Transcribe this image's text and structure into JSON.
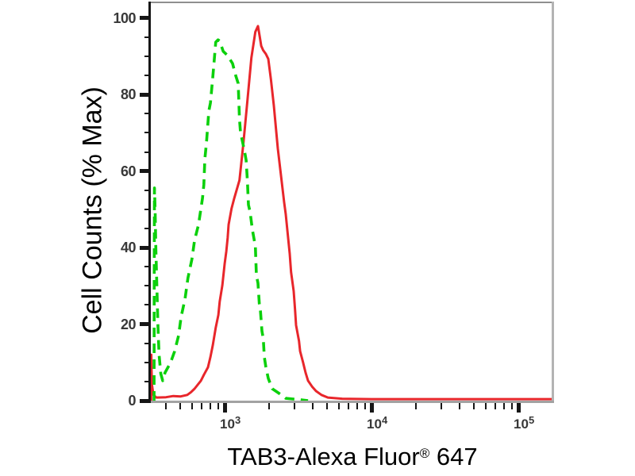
{
  "figure": {
    "ylabel": "Cell Counts (% Max)",
    "xlabel_main": "TAB3-Alexa Fluor",
    "xlabel_reg": "®",
    "xlabel_suffix": " 647"
  },
  "chart_data": {
    "type": "line",
    "subtype": "flow-cytometry-histogram-overlay",
    "title": "",
    "xlabel": "TAB3-Alexa Fluor® 647",
    "ylabel": "Cell Counts (% Max)",
    "grid": false,
    "legend": "none",
    "x_scale": "log10",
    "x_axis": {
      "min_log10": 2.497,
      "max_log10": 5.243,
      "major_ticks": [
        1000,
        10000,
        100000
      ],
      "major_tick_labels": [
        "10^3",
        "10^4",
        "10^5"
      ],
      "minor_tick_multiples": [
        2,
        3,
        4,
        5,
        6,
        7,
        8,
        9
      ]
    },
    "y_axis": {
      "min": 0,
      "max": 100,
      "max_display": 104.3,
      "major_ticks": [
        0,
        20,
        40,
        60,
        80,
        100
      ],
      "major_tick_labels": [
        "0",
        "20",
        "40",
        "60",
        "80",
        "100"
      ],
      "minor_tick_step": 5
    },
    "series": [
      {
        "name": "red-solid-curve",
        "color": "#e8262b",
        "line_style": "solid",
        "stroke_width": 3,
        "points_log10x_pctmax": [
          [
            2.499,
            0
          ],
          [
            2.5,
            12.0
          ],
          [
            2.502,
            8.0
          ],
          [
            2.505,
            4.0
          ],
          [
            2.515,
            1.5
          ],
          [
            2.535,
            0.8
          ],
          [
            2.6,
            0.9
          ],
          [
            2.65,
            1.2
          ],
          [
            2.7,
            1.1
          ],
          [
            2.745,
            1.5
          ],
          [
            2.77,
            2.2
          ],
          [
            2.795,
            3.1
          ],
          [
            2.838,
            5.2
          ],
          [
            2.859,
            6.8
          ],
          [
            2.886,
            8.7
          ],
          [
            2.903,
            11.4
          ],
          [
            2.919,
            14.5
          ],
          [
            2.939,
            19.1
          ],
          [
            2.957,
            22.4
          ],
          [
            2.966,
            25.9
          ],
          [
            2.984,
            30.1
          ],
          [
            3.0,
            35.9
          ],
          [
            3.011,
            39.0
          ],
          [
            3.02,
            42.5
          ],
          [
            3.027,
            46.0
          ],
          [
            3.047,
            50.2
          ],
          [
            3.065,
            52.9
          ],
          [
            3.101,
            57.6
          ],
          [
            3.128,
            67.4
          ],
          [
            3.155,
            78.4
          ],
          [
            3.182,
            89.6
          ],
          [
            3.209,
            96.4
          ],
          [
            3.227,
            97.9
          ],
          [
            3.238,
            95.3
          ],
          [
            3.249,
            92.7
          ],
          [
            3.262,
            91.6
          ],
          [
            3.281,
            90.6
          ],
          [
            3.297,
            89.3
          ],
          [
            3.315,
            84.0
          ],
          [
            3.335,
            77.1
          ],
          [
            3.362,
            65.9
          ],
          [
            3.405,
            51.8
          ],
          [
            3.416,
            48.7
          ],
          [
            3.432,
            42.5
          ],
          [
            3.443,
            38.4
          ],
          [
            3.452,
            33.6
          ],
          [
            3.47,
            28.6
          ],
          [
            3.479,
            23.8
          ],
          [
            3.486,
            19.7
          ],
          [
            3.506,
            15.6
          ],
          [
            3.514,
            12.9
          ],
          [
            3.534,
            10.0
          ],
          [
            3.551,
            7.3
          ],
          [
            3.568,
            5.2
          ],
          [
            3.595,
            3.7
          ],
          [
            3.622,
            2.5
          ],
          [
            3.659,
            1.5
          ],
          [
            3.703,
            0.8
          ],
          [
            3.8,
            0.5
          ],
          [
            4.0,
            0.4
          ],
          [
            4.5,
            0.4
          ],
          [
            5.0,
            0.4
          ],
          [
            5.243,
            0.4
          ]
        ]
      },
      {
        "name": "green-dashed-curve",
        "color": "#0bd00b",
        "line_style": "dashed",
        "stroke_width": 3.6,
        "dash_pattern": [
          12,
          8
        ],
        "points_log10x_pctmax": [
          [
            2.519,
            0
          ],
          [
            2.52,
            30.0
          ],
          [
            2.522,
            55.6
          ],
          [
            2.526,
            50.0
          ],
          [
            2.531,
            40.0
          ],
          [
            2.538,
            30.0
          ],
          [
            2.545,
            20.0
          ],
          [
            2.553,
            12.0
          ],
          [
            2.565,
            7.0
          ],
          [
            2.578,
            5.2
          ],
          [
            2.594,
            7.3
          ],
          [
            2.632,
            10.0
          ],
          [
            2.659,
            12.9
          ],
          [
            2.686,
            17.0
          ],
          [
            2.703,
            21.8
          ],
          [
            2.73,
            26.6
          ],
          [
            2.75,
            32.1
          ],
          [
            2.777,
            37.0
          ],
          [
            2.795,
            41.9
          ],
          [
            2.822,
            46.0
          ],
          [
            2.849,
            52.9
          ],
          [
            2.858,
            56.4
          ],
          [
            2.865,
            63.2
          ],
          [
            2.876,
            67.4
          ],
          [
            2.892,
            75.7
          ],
          [
            2.903,
            77.8
          ],
          [
            2.919,
            84.6
          ],
          [
            2.939,
            93.7
          ],
          [
            2.955,
            94.3
          ],
          [
            2.966,
            94.0
          ],
          [
            2.99,
            91.3
          ],
          [
            3.02,
            90.2
          ],
          [
            3.054,
            88.1
          ],
          [
            3.075,
            85.0
          ],
          [
            3.092,
            82.9
          ],
          [
            3.101,
            73.6
          ],
          [
            3.108,
            70.1
          ],
          [
            3.135,
            65.3
          ],
          [
            3.146,
            62.8
          ],
          [
            3.155,
            57.4
          ],
          [
            3.162,
            51.2
          ],
          [
            3.173,
            49.3
          ],
          [
            3.189,
            44.6
          ],
          [
            3.209,
            40.4
          ],
          [
            3.216,
            32.8
          ],
          [
            3.227,
            30.7
          ],
          [
            3.236,
            25.3
          ],
          [
            3.243,
            23.8
          ],
          [
            3.254,
            18.2
          ],
          [
            3.263,
            16.2
          ],
          [
            3.27,
            11.4
          ],
          [
            3.281,
            8.7
          ],
          [
            3.297,
            5.8
          ],
          [
            3.324,
            3.1
          ],
          [
            3.378,
            1.7
          ],
          [
            3.416,
            0.6
          ],
          [
            3.5,
            0.3
          ],
          [
            3.568,
            0.0
          ]
        ]
      }
    ]
  }
}
